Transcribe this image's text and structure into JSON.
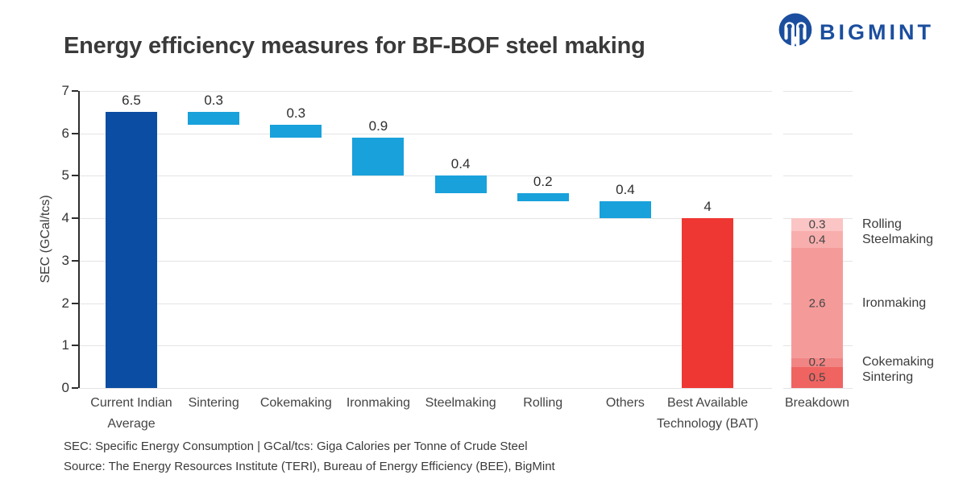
{
  "header": {
    "title": "Energy efficiency measures for BF-BOF steel making",
    "brand": "BIGMINT"
  },
  "footnotes": {
    "line1": "SEC: Specific Energy Consumption | GCal/tcs: Giga Calories per Tonne of Crude Steel",
    "line2": "Source: The Energy Resources Institute (TERI), Bureau of Energy Efficiency (BEE), BigMint"
  },
  "chart_data": {
    "type": "bar",
    "subtype": "waterfall-with-stacked-breakdown",
    "title": "Energy efficiency measures for BF-BOF steel making",
    "xlabel": "",
    "ylabel": "SEC (GCal/tcs)",
    "ylim": [
      0,
      7
    ],
    "yticks": [
      0,
      1,
      2,
      3,
      4,
      5,
      6,
      7
    ],
    "grid": true,
    "colors": {
      "start_bar": "#0b4da2",
      "reduction_bar": "#18a1db",
      "end_bar": "#ee3732",
      "brand": "#1b4e9e"
    },
    "waterfall_steps": [
      {
        "category": [
          "Current Indian",
          "Average"
        ],
        "base": 0.0,
        "value": 6.5,
        "label": "6.5",
        "kind": "start"
      },
      {
        "category": [
          "Sintering"
        ],
        "base": 6.2,
        "value": 0.3,
        "label": "0.3",
        "kind": "reduction"
      },
      {
        "category": [
          "Cokemaking"
        ],
        "base": 5.9,
        "value": 0.3,
        "label": "0.3",
        "kind": "reduction"
      },
      {
        "category": [
          "Ironmaking"
        ],
        "base": 5.0,
        "value": 0.9,
        "label": "0.9",
        "kind": "reduction"
      },
      {
        "category": [
          "Steelmaking"
        ],
        "base": 4.6,
        "value": 0.4,
        "label": "0.4",
        "kind": "reduction"
      },
      {
        "category": [
          "Rolling"
        ],
        "base": 4.4,
        "value": 0.2,
        "label": "0.2",
        "kind": "reduction"
      },
      {
        "category": [
          "Others"
        ],
        "base": 4.0,
        "value": 0.4,
        "label": "0.4",
        "kind": "reduction"
      },
      {
        "category": [
          "Best Available",
          "Technology (BAT)"
        ],
        "base": 0.0,
        "value": 4.0,
        "label": "4",
        "kind": "end"
      }
    ],
    "breakdown": {
      "category": [
        "Breakdown"
      ],
      "segments_bottom_to_top": [
        {
          "name": "Sintering",
          "value": 0.5,
          "label": "0.5",
          "color": "#ef6461"
        },
        {
          "name": "Cokemaking",
          "value": 0.2,
          "label": "0.2",
          "color": "#f18584"
        },
        {
          "name": "Ironmaking",
          "value": 2.6,
          "label": "2.6",
          "color": "#f49b9a"
        },
        {
          "name": "Steelmaking",
          "value": 0.4,
          "label": "0.4",
          "color": "#f8aead"
        },
        {
          "name": "Rolling",
          "value": 0.3,
          "label": "0.3",
          "color": "#fac5c4"
        }
      ]
    }
  }
}
